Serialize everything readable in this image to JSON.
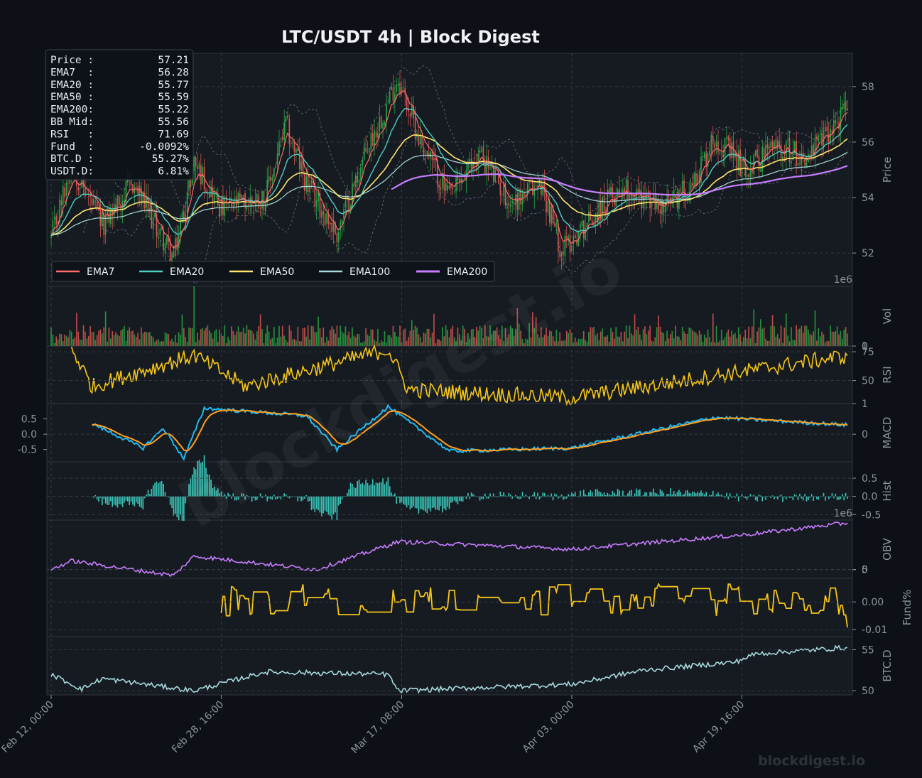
{
  "title": "LTC/USDT  4h  |  Block Digest",
  "watermark": "blockdigest.io",
  "brand": "blockdigest.io",
  "colors": {
    "background": "#0d1117",
    "panel": "#161b22",
    "up": "#26a641",
    "down": "#d9534f",
    "ema7": "#ff6b6b",
    "ema20": "#4ecdc4",
    "ema50": "#ffe66d",
    "ema100": "#a8dadc",
    "ema200": "#c77dff",
    "rsi": "#f5c518",
    "macd": "#1fb8f0",
    "signal": "#ff9f1c",
    "hist": "#40e0d0",
    "obv": "#c77dff",
    "funding": "#f5c518",
    "btcd": "#a8dadc"
  },
  "info_box": [
    {
      "label": "Price :",
      "value": "57.21"
    },
    {
      "label": "EMA7  :",
      "value": "56.28"
    },
    {
      "label": "EMA20 :",
      "value": "55.77"
    },
    {
      "label": "EMA50 :",
      "value": "55.59"
    },
    {
      "label": "EMA200:",
      "value": "55.22"
    },
    {
      "label": "BB Mid:",
      "value": "55.56"
    },
    {
      "label": "RSI   :",
      "value": "71.69"
    },
    {
      "label": "Fund  :",
      "value": "-0.0092%"
    },
    {
      "label": "BTC.D :",
      "value": "55.27%"
    },
    {
      "label": "USDT.D:",
      "value": "6.81%"
    }
  ],
  "legend": [
    "EMA7",
    "EMA20",
    "EMA50",
    "EMA100",
    "EMA200"
  ],
  "x_ticks": [
    "Feb 12, 00:00",
    "Feb 28, 16:00",
    "Mar 17, 08:00",
    "Apr 03, 00:00",
    "Apr 19, 16:00"
  ],
  "chart_data": [
    {
      "type": "candlestick",
      "panel": "price",
      "ylabel": "Price",
      "yticks": [
        "52",
        "54",
        "56",
        "58"
      ],
      "ylim": [
        50.8,
        59.2
      ],
      "overlays": [
        "EMA7",
        "EMA20",
        "EMA50",
        "EMA100",
        "EMA200",
        "Bollinger Bands"
      ],
      "x_start": "Feb 12, 00:00",
      "x_end": "Apr 30, 00:00",
      "keypoints": [
        {
          "x": "Feb 12, 00:00",
          "close": 52.5
        },
        {
          "x": "Feb 14, 00:00",
          "close": 55.2
        },
        {
          "x": "Feb 17, 00:00",
          "close": 53.0
        },
        {
          "x": "Feb 20, 00:00",
          "close": 54.5
        },
        {
          "x": "Feb 24, 00:00",
          "close": 51.8
        },
        {
          "x": "Feb 26, 00:00",
          "close": 55.3
        },
        {
          "x": "Feb 28, 16:00",
          "close": 53.6
        },
        {
          "x": "Mar 04, 00:00",
          "close": 54.0
        },
        {
          "x": "Mar 06, 00:00",
          "close": 56.6
        },
        {
          "x": "Mar 08, 00:00",
          "close": 54.5
        },
        {
          "x": "Mar 11, 00:00",
          "close": 52.7
        },
        {
          "x": "Mar 14, 00:00",
          "close": 55.8
        },
        {
          "x": "Mar 17, 00:00",
          "close": 58.3
        },
        {
          "x": "Mar 19, 00:00",
          "close": 56.2
        },
        {
          "x": "Mar 22, 00:00",
          "close": 54.0
        },
        {
          "x": "Mar 25, 00:00",
          "close": 55.6
        },
        {
          "x": "Mar 28, 00:00",
          "close": 53.8
        },
        {
          "x": "Mar 31, 00:00",
          "close": 54.5
        },
        {
          "x": "Apr 02, 00:00",
          "close": 52.1
        },
        {
          "x": "Apr 05, 00:00",
          "close": 53.3
        },
        {
          "x": "Apr 08, 00:00",
          "close": 54.4
        },
        {
          "x": "Apr 12, 00:00",
          "close": 53.6
        },
        {
          "x": "Apr 15, 00:00",
          "close": 54.6
        },
        {
          "x": "Apr 17, 00:00",
          "close": 56.2
        },
        {
          "x": "Apr 20, 00:00",
          "close": 55.0
        },
        {
          "x": "Apr 23, 00:00",
          "close": 55.9
        },
        {
          "x": "Apr 26, 00:00",
          "close": 55.4
        },
        {
          "x": "Apr 30, 00:00",
          "close": 57.21
        }
      ]
    },
    {
      "type": "bar",
      "panel": "volume",
      "ylabel": "Vol",
      "yticks": [
        "0",
        "1"
      ],
      "offset_text": "1e6",
      "ylim": [
        0,
        1000000
      ],
      "typical_range": [
        150000,
        350000
      ],
      "peak": {
        "x": "Feb 26, 00:00",
        "value": 1000000
      }
    },
    {
      "type": "line",
      "panel": "rsi",
      "ylabel": "RSI",
      "yticks": [
        "50",
        "75"
      ],
      "ylim": [
        30,
        80
      ],
      "keypoints": [
        {
          "x": "Feb 14, 00:00",
          "y": 78
        },
        {
          "x": "Feb 16, 00:00",
          "y": 45
        },
        {
          "x": "Feb 26, 00:00",
          "y": 72
        },
        {
          "x": "Mar 02, 00:00",
          "y": 45
        },
        {
          "x": "Mar 16, 00:00",
          "y": 77
        },
        {
          "x": "Mar 18, 00:00",
          "y": 42
        },
        {
          "x": "Apr 03, 00:00",
          "y": 35
        },
        {
          "x": "Apr 30, 00:00",
          "y": 71.69
        }
      ]
    },
    {
      "type": "line",
      "panel": "macd",
      "ylabel": "MACD",
      "yticks_left": [
        "0.5",
        "0.0",
        "-0.5"
      ],
      "yticks_right": [
        "1",
        "0"
      ],
      "ylim": [
        -0.9,
        1.0
      ],
      "series": [
        {
          "name": "MACD"
        },
        {
          "name": "Signal"
        }
      ],
      "keypoints": [
        {
          "x": "Feb 16, 00:00",
          "y": 0.35
        },
        {
          "x": "Feb 21, 00:00",
          "y": -0.45
        },
        {
          "x": "Feb 23, 00:00",
          "y": 0.2
        },
        {
          "x": "Feb 25, 00:00",
          "y": -0.8
        },
        {
          "x": "Feb 27, 00:00",
          "y": 0.85
        },
        {
          "x": "Mar 08, 00:00",
          "y": 0.6
        },
        {
          "x": "Mar 11, 00:00",
          "y": -0.5
        },
        {
          "x": "Mar 16, 00:00",
          "y": 0.9
        },
        {
          "x": "Mar 22, 00:00",
          "y": -0.55
        },
        {
          "x": "Apr 03, 00:00",
          "y": -0.45
        },
        {
          "x": "Apr 17, 00:00",
          "y": 0.55
        },
        {
          "x": "Apr 30, 00:00",
          "y": 0.3
        }
      ]
    },
    {
      "type": "bar",
      "panel": "histogram",
      "ylabel": "Hist",
      "yticks": [
        "0.5",
        "0.0",
        "-0.5"
      ],
      "ylim": [
        -0.65,
        0.95
      ],
      "peak": {
        "x": "Feb 27, 00:00",
        "value": 0.85
      },
      "trough": {
        "x": "Mar 01, 00:00",
        "value": -0.55
      }
    },
    {
      "type": "line",
      "panel": "obv",
      "ylabel": "OBV",
      "yticks": [
        "0",
        "5"
      ],
      "offset_text": "1e6",
      "ylim": [
        -1500000,
        8500000
      ],
      "keypoints": [
        {
          "x": "Feb 12, 00:00",
          "y": 0.0
        },
        {
          "x": "Feb 14, 00:00",
          "y": 1500000
        },
        {
          "x": "Feb 24, 00:00",
          "y": -1000000
        },
        {
          "x": "Feb 26, 00:00",
          "y": 2300000
        },
        {
          "x": "Mar 09, 00:00",
          "y": 0.0
        },
        {
          "x": "Mar 17, 00:00",
          "y": 4800000
        },
        {
          "x": "Apr 03, 00:00",
          "y": 3500000
        },
        {
          "x": "Apr 20, 00:00",
          "y": 6000000
        },
        {
          "x": "Apr 30, 00:00",
          "y": 8000000
        }
      ]
    },
    {
      "type": "line",
      "panel": "funding",
      "ylabel": "Fund%",
      "yticks": [
        "0.00",
        "-0.01"
      ],
      "ylim": [
        -0.0125,
        0.0085
      ],
      "keypoints": [
        {
          "x": "Feb 28, 16:00",
          "y": -0.004
        },
        {
          "x": "Mar 01, 00:00",
          "y": 0.005
        },
        {
          "x": "Mar 07, 00:00",
          "y": -0.01
        },
        {
          "x": "Mar 16, 00:00",
          "y": 0.007
        },
        {
          "x": "Apr 10, 00:00",
          "y": -0.008
        },
        {
          "x": "Apr 19, 00:00",
          "y": -0.011
        },
        {
          "x": "Apr 30, 00:00",
          "y": -0.0092
        }
      ]
    },
    {
      "type": "line",
      "panel": "btc_dominance",
      "ylabel": "BTC.D",
      "yticks": [
        "55",
        "50"
      ],
      "ylim": [
        49.5,
        56.6
      ],
      "keypoints": [
        {
          "x": "Feb 12, 00:00",
          "y": 52.0
        },
        {
          "x": "Feb 15, 00:00",
          "y": 50.2
        },
        {
          "x": "Feb 17, 00:00",
          "y": 51.5
        },
        {
          "x": "Feb 26, 00:00",
          "y": 50.0
        },
        {
          "x": "Mar 04, 00:00",
          "y": 52.3
        },
        {
          "x": "Mar 16, 00:00",
          "y": 52.0
        },
        {
          "x": "Mar 17, 00:00",
          "y": 50.0
        },
        {
          "x": "Apr 03, 00:00",
          "y": 50.8
        },
        {
          "x": "Apr 10, 00:00",
          "y": 52.5
        },
        {
          "x": "Apr 19, 00:00",
          "y": 53.5
        },
        {
          "x": "Apr 21, 00:00",
          "y": 54.5
        },
        {
          "x": "Apr 30, 00:00",
          "y": 55.27
        }
      ]
    }
  ]
}
